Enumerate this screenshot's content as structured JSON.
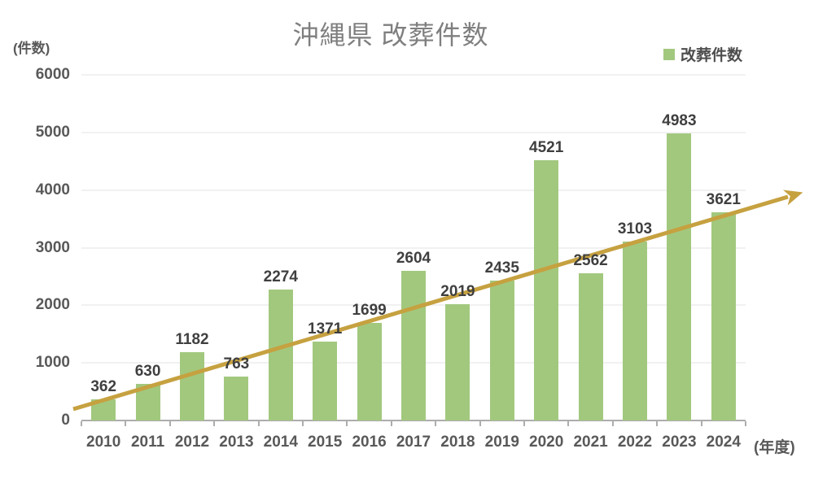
{
  "title": "沖縄県 改葬件数",
  "y_axis_unit_label": "(件数)",
  "x_axis_unit_label": "(年度)",
  "legend": {
    "label": "改葬件数"
  },
  "colors": {
    "bar": "#a2c87e",
    "arrow": "#c6a140",
    "title_text": "#7f7f7f",
    "axis_label": "#595959",
    "data_label": "#3f3f3f",
    "gridline": "#f1f1f1",
    "axis_line": "#adadad"
  },
  "chart_data": {
    "type": "bar",
    "title": "沖縄県 改葬件数",
    "xlabel": "(年度)",
    "ylabel": "(件数)",
    "categories": [
      "2010",
      "2011",
      "2012",
      "2013",
      "2014",
      "2015",
      "2016",
      "2017",
      "2018",
      "2019",
      "2020",
      "2021",
      "2022",
      "2023",
      "2024"
    ],
    "values": [
      362,
      630,
      1182,
      763,
      2274,
      1371,
      1699,
      2604,
      2019,
      2435,
      4521,
      2562,
      3103,
      4983,
      3621
    ],
    "series_name": "改葬件数",
    "ylim": [
      0,
      6000
    ],
    "yticks": [
      0,
      1000,
      2000,
      3000,
      4000,
      5000,
      6000
    ],
    "grid": true,
    "legend_position": "top-right",
    "data_labels": true,
    "annotations": [
      "upward diagonal trend arrow from bottom-left to upper-right"
    ]
  }
}
